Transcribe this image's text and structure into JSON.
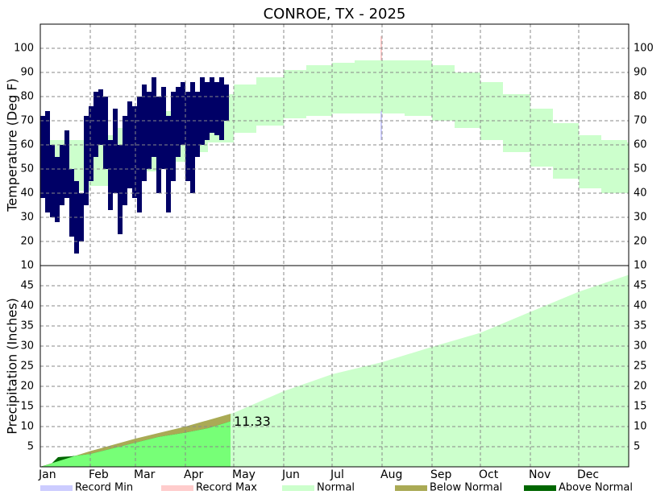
{
  "title": "CONROE, TX - 2025",
  "legend": [
    {
      "name": "Record Min",
      "color": "#ccccff"
    },
    {
      "name": "Record Max",
      "color": "#ffcccc"
    },
    {
      "name": "Normal",
      "color": "#ccffcc"
    },
    {
      "name": "Below Normal",
      "color": "#aaaa55"
    },
    {
      "name": "Above Normal",
      "color": "#006600"
    }
  ],
  "chart_data": [
    {
      "type": "range",
      "y_label": "Temperature (Deg F)",
      "xlim": [
        1,
        366
      ],
      "ylim": [
        10,
        110
      ],
      "yticks": [
        10,
        20,
        30,
        40,
        50,
        60,
        70,
        80,
        90,
        100
      ],
      "grid": true,
      "series": [
        {
          "name": "Normal",
          "color": "#ccffcc",
          "x": [
            1,
            15,
            32,
            46,
            60,
            74,
            91,
            105,
            121,
            135,
            152,
            166,
            182,
            196,
            213,
            227,
            244,
            258,
            274,
            288,
            305,
            319,
            335,
            349,
            365
          ],
          "low": [
            41,
            41,
            43,
            46,
            49,
            53,
            57,
            61,
            65,
            68,
            71,
            72,
            73,
            73,
            73,
            72,
            70,
            67,
            62,
            57,
            51,
            46,
            42,
            40,
            40
          ],
          "high": [
            62,
            62,
            64,
            67,
            71,
            74,
            78,
            81,
            85,
            88,
            91,
            93,
            94,
            95,
            95,
            95,
            93,
            90,
            86,
            81,
            75,
            69,
            64,
            62,
            61
          ]
        },
        {
          "name": "Record Max",
          "color": "#ffcccc",
          "x": [
            212
          ],
          "low": [
            95
          ],
          "high": [
            105
          ]
        },
        {
          "name": "Record Min",
          "color": "#ccccff",
          "x": [
            212
          ],
          "low": [
            62
          ],
          "high": [
            74
          ]
        },
        {
          "color": "#000066",
          "x": [
            1,
            4,
            7,
            10,
            13,
            16,
            19,
            22,
            25,
            28,
            31,
            34,
            37,
            40,
            43,
            46,
            49,
            52,
            55,
            58,
            61,
            64,
            67,
            70,
            73,
            76,
            79,
            82,
            85,
            88,
            91,
            94,
            97,
            100,
            103,
            106,
            109,
            112,
            115
          ],
          "low": [
            38,
            32,
            30,
            28,
            35,
            38,
            22,
            15,
            20,
            35,
            45,
            55,
            60,
            50,
            33,
            40,
            23,
            35,
            42,
            38,
            32,
            45,
            50,
            55,
            40,
            50,
            32,
            45,
            55,
            60,
            45,
            40,
            55,
            60,
            62,
            65,
            64,
            62,
            70
          ],
          "high": [
            72,
            74,
            60,
            55,
            60,
            66,
            50,
            45,
            40,
            72,
            76,
            82,
            83,
            80,
            62,
            75,
            60,
            72,
            78,
            76,
            80,
            85,
            82,
            88,
            80,
            84,
            72,
            82,
            84,
            86,
            82,
            86,
            82,
            88,
            86,
            88,
            86,
            88,
            85
          ]
        }
      ]
    },
    {
      "type": "area",
      "y_label": "Precipitation (Inches)",
      "xlim": [
        1,
        366
      ],
      "ylim": [
        0,
        50
      ],
      "yticks": [
        5,
        10,
        15,
        20,
        25,
        30,
        35,
        40,
        45
      ],
      "grid": true,
      "xticks": [
        {
          "value": 1,
          "label": "Jan"
        },
        {
          "value": 32,
          "label": "Feb"
        },
        {
          "value": 60,
          "label": "Mar"
        },
        {
          "value": 91,
          "label": "Apr"
        },
        {
          "value": 121,
          "label": "May"
        },
        {
          "value": 152,
          "label": "Jun"
        },
        {
          "value": 182,
          "label": "Jul"
        },
        {
          "value": 213,
          "label": "Aug"
        },
        {
          "value": 244,
          "label": "Sep"
        },
        {
          "value": 274,
          "label": "Oct"
        },
        {
          "value": 305,
          "label": "Nov"
        },
        {
          "value": 335,
          "label": "Dec"
        }
      ],
      "series": [
        {
          "name": "Normal",
          "color": "#ccffcc",
          "x": [
            1,
            32,
            60,
            91,
            121,
            152,
            182,
            213,
            244,
            274,
            305,
            335,
            366
          ],
          "values": [
            0,
            3.9,
            7.0,
            10.0,
            13.4,
            18.8,
            23.0,
            26.0,
            29.8,
            33.3,
            38.5,
            43.5,
            47.7
          ]
        },
        {
          "color": "#77ff77",
          "x": [
            1,
            8,
            12,
            15,
            20,
            32,
            46,
            60,
            74,
            91,
            105,
            115,
            119
          ],
          "values": [
            0,
            0.8,
            2.4,
            2.5,
            2.6,
            3.2,
            4.6,
            6.0,
            7.4,
            8.5,
            9.6,
            10.8,
            11.33
          ]
        }
      ]
    }
  ]
}
